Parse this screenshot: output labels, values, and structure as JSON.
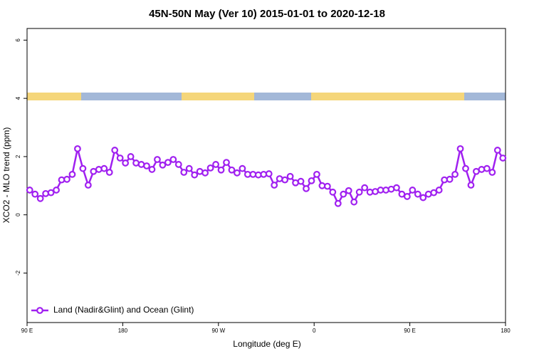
{
  "chart_data": {
    "type": "line",
    "title": "45N-50N May (Ver 10)   2015-01-01 to 2020-12-18",
    "x_label": "Longitude (deg E)",
    "y_label": "XCO2 - MLO trend (ppm)",
    "xlim": [
      90,
      540
    ],
    "ylim": [
      -3.7,
      6.4
    ],
    "xticks": [
      {
        "value": 90,
        "label": "90 E"
      },
      180,
      {
        "value": 270,
        "label": "90 W"
      },
      {
        "value": 360,
        "label": "0"
      },
      {
        "value": 450,
        "label": "90 E"
      },
      {
        "value": 540,
        "label": "180"
      }
    ],
    "yticks": [
      -2,
      0,
      2,
      4,
      6
    ],
    "legend": "bottom-left",
    "x": [
      92.5,
      97.5,
      102.5,
      107.5,
      112.5,
      117.5,
      122.5,
      127.5,
      132.5,
      137.5,
      142.5,
      147.5,
      152.5,
      157.5,
      162.5,
      167.5,
      172.5,
      177.5,
      182.5,
      187.5,
      192.5,
      197.5,
      202.5,
      207.5,
      212.5,
      217.5,
      222.5,
      227.5,
      232.5,
      237.5,
      242.5,
      247.5,
      252.5,
      257.5,
      262.5,
      267.5,
      272.5,
      277.5,
      282.5,
      287.5,
      292.5,
      297.5,
      302.5,
      307.5,
      312.5,
      317.5,
      322.5,
      327.5,
      332.5,
      337.5,
      342.5,
      347.5,
      352.5,
      357.5,
      362.5,
      367.5,
      372.5,
      377.5,
      382.5,
      387.5,
      392.5,
      397.5,
      402.5,
      407.5,
      412.5,
      417.5,
      422.5,
      427.5,
      432.5,
      437.5,
      442.5,
      447.5,
      452.5,
      457.5,
      462.5,
      467.5,
      472.5,
      477.5,
      482.5,
      487.5,
      492.5,
      497.5,
      502.5,
      507.5,
      512.5,
      517.5,
      522.5,
      527.5,
      532.5,
      537.5
    ],
    "series": [
      {
        "name": "Land (Nadir&Glint) and Ocean (Glint)",
        "color": "#a020f0",
        "values": [
          0.85,
          0.71,
          0.56,
          0.73,
          0.76,
          0.85,
          1.2,
          1.22,
          1.39,
          2.27,
          1.59,
          1.02,
          1.49,
          1.56,
          1.59,
          1.46,
          2.22,
          1.95,
          1.78,
          2.0,
          1.78,
          1.73,
          1.68,
          1.56,
          1.9,
          1.71,
          1.8,
          1.9,
          1.73,
          1.46,
          1.59,
          1.37,
          1.49,
          1.44,
          1.61,
          1.73,
          1.54,
          1.8,
          1.54,
          1.44,
          1.59,
          1.39,
          1.39,
          1.37,
          1.39,
          1.41,
          1.02,
          1.24,
          1.2,
          1.32,
          1.1,
          1.15,
          0.9,
          1.17,
          1.39,
          1.0,
          0.98,
          0.78,
          0.39,
          0.71,
          0.83,
          0.44,
          0.78,
          0.93,
          0.78,
          0.8,
          0.85,
          0.85,
          0.88,
          0.93,
          0.71,
          0.63,
          0.85,
          0.71,
          0.59,
          0.71,
          0.76,
          0.85,
          1.2,
          1.22,
          1.39,
          2.27,
          1.59,
          1.02,
          1.49,
          1.56,
          1.59,
          1.46,
          2.22,
          1.95
        ]
      }
    ]
  }
}
